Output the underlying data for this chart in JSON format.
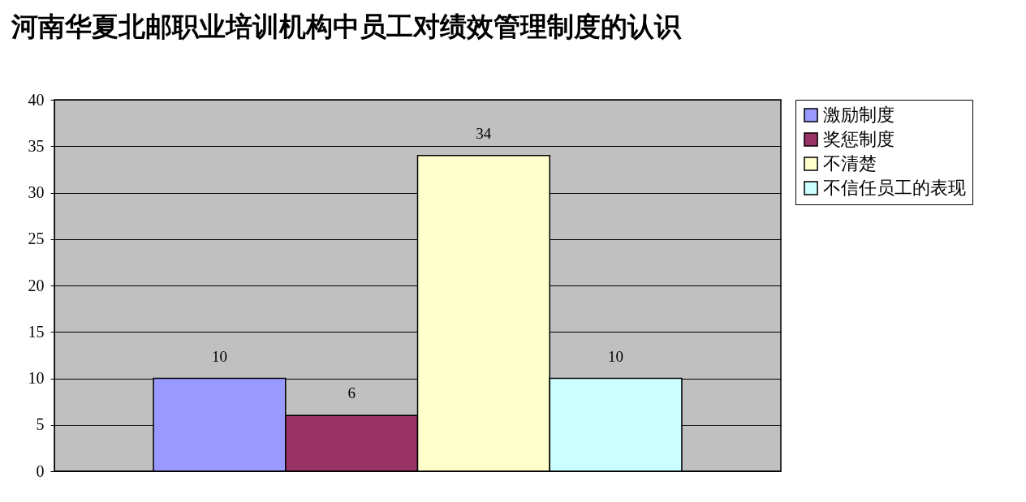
{
  "chart_data": {
    "type": "bar",
    "title": "河南华夏北邮职业培训机构中员工对绩效管理制度的认识",
    "categories": [
      null
    ],
    "series": [
      {
        "name": "激励制度",
        "color": "#9999ff",
        "values": [
          10
        ]
      },
      {
        "name": "奖惩制度",
        "color": "#993366",
        "values": [
          6
        ]
      },
      {
        "name": "不清楚",
        "color": "#ffffcc",
        "values": [
          34
        ]
      },
      {
        "name": "不信任员工的表现",
        "color": "#ccffff",
        "values": [
          10
        ]
      }
    ],
    "ylim": [
      0,
      40
    ],
    "yticks": [
      0,
      5,
      10,
      15,
      20,
      25,
      30,
      35,
      40
    ],
    "grid": "y",
    "legend": "right",
    "data_labels": true,
    "tick_labels": "y"
  }
}
